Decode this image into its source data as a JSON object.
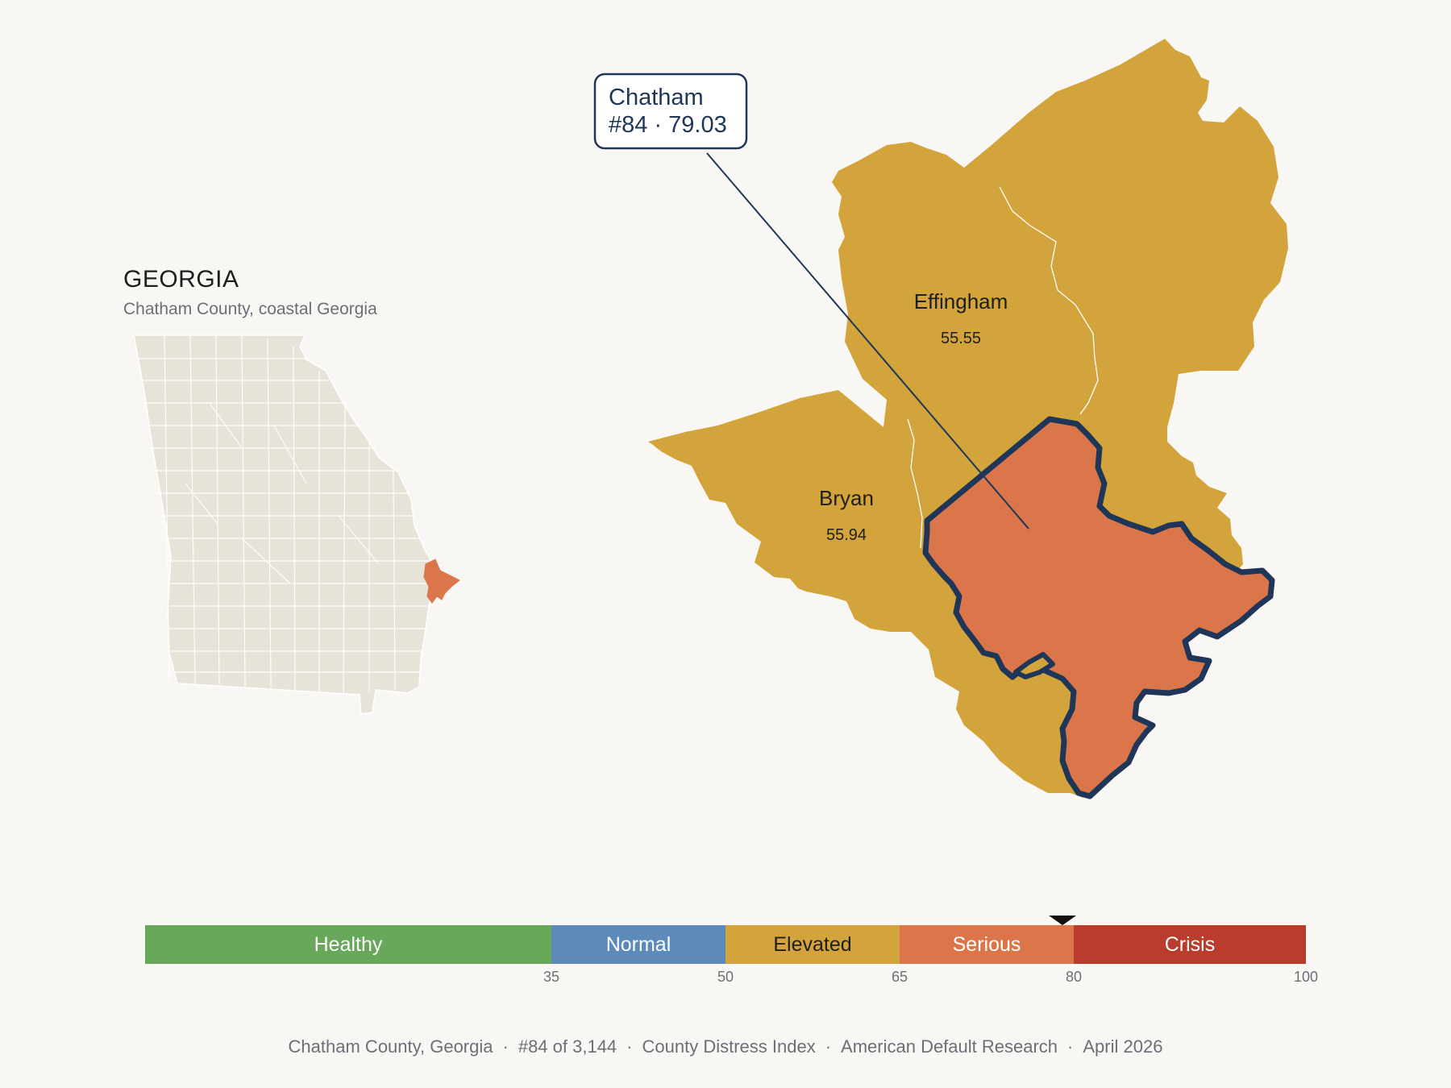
{
  "state_panel": {
    "title": "GEORGIA",
    "subtitle": "Chatham County, coastal Georgia"
  },
  "counties": {
    "focus": {
      "name": "Chatham",
      "callout_line2": "#84 · 79.03",
      "score": 79.03,
      "color": "#db764a",
      "outline": "#1f3658"
    },
    "neighbors": [
      {
        "name": "Effingham",
        "score_label": "55.55",
        "color": "#d3a43b"
      },
      {
        "name": "Bryan",
        "score_label": "55.94",
        "color": "#d3a43b"
      }
    ]
  },
  "scale": {
    "bands": [
      {
        "label": "Healthy",
        "from": 0,
        "to": 35,
        "color": "#67a85a",
        "text_color": "#ffffff"
      },
      {
        "label": "Normal",
        "from": 35,
        "to": 50,
        "color": "#5c8ab9",
        "text_color": "#ffffff"
      },
      {
        "label": "Elevated",
        "from": 50,
        "to": 65,
        "color": "#d3a43b",
        "text_color": "#1e1e1e"
      },
      {
        "label": "Serious",
        "from": 65,
        "to": 80,
        "color": "#db764a",
        "text_color": "#ffffff"
      },
      {
        "label": "Crisis",
        "from": 80,
        "to": 100,
        "color": "#b93c2c",
        "text_color": "#ffffff"
      }
    ],
    "ticks": [
      "35",
      "50",
      "65",
      "80",
      "100"
    ],
    "min": 0,
    "max": 100,
    "marker_value": 79.03
  },
  "footer": {
    "parts": [
      "Chatham County, Georgia",
      "#84 of 3,144",
      "County Distress Index",
      "American Default Research",
      "April 2026"
    ]
  },
  "colors": {
    "background": "#f9f7f3",
    "state_fill": "#e8e3d8",
    "county_line": "#ffffff"
  }
}
